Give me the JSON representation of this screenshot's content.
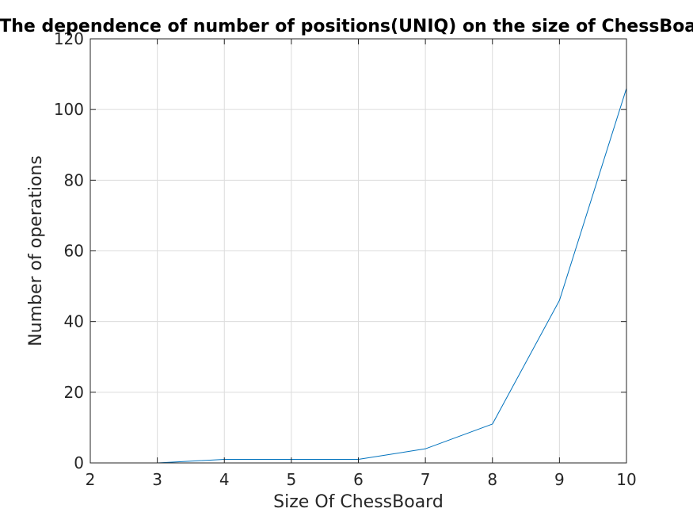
{
  "chart_data": {
    "type": "line",
    "title": "The dependence of number of positions(UNIQ) on the size of ChessBoard",
    "xlabel": "Size Of ChessBoard",
    "ylabel": "Number of operations",
    "xlim": [
      2,
      10
    ],
    "ylim": [
      0,
      120
    ],
    "xticks": [
      "2",
      "3",
      "4",
      "5",
      "6",
      "7",
      "8",
      "9",
      "10"
    ],
    "yticks": [
      "0",
      "20",
      "40",
      "60",
      "80",
      "100",
      "120"
    ],
    "grid": true,
    "box": true,
    "series": [
      {
        "color": "#0072bd",
        "x": [
          2,
          3,
          4,
          5,
          6,
          7,
          8,
          9,
          10
        ],
        "y": [
          0,
          0,
          1,
          1,
          1,
          4,
          11,
          46,
          106
        ]
      }
    ]
  }
}
